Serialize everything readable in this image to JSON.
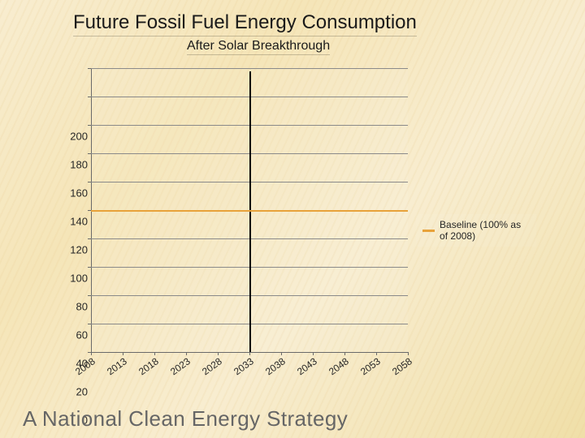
{
  "title": "Future Fossil Fuel Energy Consumption",
  "subtitle": "After Solar Breakthrough",
  "footer": "A National Clean Energy Strategy",
  "chart": {
    "type": "line",
    "background_color": "transparent",
    "grid_color": "#8a8a8a",
    "axis_color": "#6a6a6a",
    "tick_font_size": 13,
    "title_font_size": 24,
    "subtitle_font_size": 16,
    "footer_font_size": 26,
    "ylim": [
      0,
      200
    ],
    "ytick_step": 20,
    "y_ticks": [
      0,
      20,
      40,
      60,
      80,
      100,
      120,
      140,
      160,
      180,
      200
    ],
    "x_labels": [
      "2008",
      "2013",
      "2018",
      "2023",
      "2028",
      "2033",
      "2038",
      "2043",
      "2048",
      "2053",
      "2058"
    ],
    "x_label_rotation": -36,
    "vertical_line_x": "2033",
    "vertical_line_color": "#000000",
    "vertical_line_width": 2,
    "series": [
      {
        "name": "Baseline (100% as of 2008)",
        "color": "#e8a23a",
        "line_width": 2,
        "values": [
          100,
          100,
          100,
          100,
          100,
          100,
          100,
          100,
          100,
          100,
          100
        ]
      }
    ],
    "legend_position": "right"
  }
}
